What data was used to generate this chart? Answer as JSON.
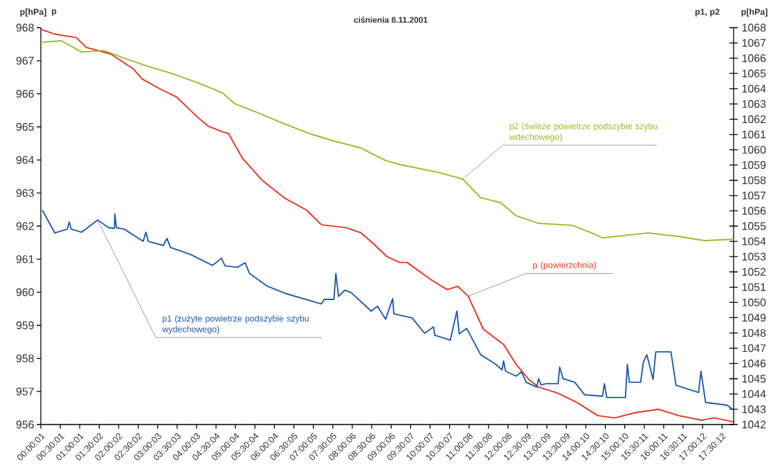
{
  "chart_data": {
    "type": "line",
    "title": "ciśnienia 8.11.2001",
    "ylabel": "p[hPa]",
    "y2label": "p[hPa]",
    "annotations": [
      "p",
      "p1, p2"
    ],
    "xlim": [
      0,
      17.8
    ],
    "xticks": [
      {
        "value": 0.0003,
        "label": "00:00:01"
      },
      {
        "value": 0.5003,
        "label": "00:30:01"
      },
      {
        "value": 1.0003,
        "label": "01:00:01"
      },
      {
        "value": 1.5006,
        "label": "01:30:02"
      },
      {
        "value": 2.0006,
        "label": "02:00:02"
      },
      {
        "value": 2.5006,
        "label": "02:30:02"
      },
      {
        "value": 3.0008,
        "label": "03:00:03"
      },
      {
        "value": 3.5008,
        "label": "03:30:03"
      },
      {
        "value": 4.0008,
        "label": "04:00:03"
      },
      {
        "value": 4.5011,
        "label": "04:30:04"
      },
      {
        "value": 5.0011,
        "label": "05:00:04"
      },
      {
        "value": 5.5011,
        "label": "05:30:04"
      },
      {
        "value": 6.0011,
        "label": "06:00:04"
      },
      {
        "value": 6.5014,
        "label": "06:30:05"
      },
      {
        "value": 7.0014,
        "label": "07:00:05"
      },
      {
        "value": 7.5014,
        "label": "07:30:05"
      },
      {
        "value": 8.0017,
        "label": "08:00:06"
      },
      {
        "value": 8.5017,
        "label": "08:30:06"
      },
      {
        "value": 9.0017,
        "label": "09:00:06"
      },
      {
        "value": 9.5019,
        "label": "09:30:07"
      },
      {
        "value": 10.0019,
        "label": "10:00:07"
      },
      {
        "value": 10.5019,
        "label": "10:30:07"
      },
      {
        "value": 11.0022,
        "label": "11:00:08"
      },
      {
        "value": 11.5022,
        "label": "11:30:08"
      },
      {
        "value": 12.0022,
        "label": "12:00:08"
      },
      {
        "value": 12.5025,
        "label": "12:30:09"
      },
      {
        "value": 13.0025,
        "label": "13:00:09"
      },
      {
        "value": 13.5025,
        "label": "13:30:09"
      },
      {
        "value": 14.0028,
        "label": "14:00:10"
      },
      {
        "value": 14.5028,
        "label": "14:30:10"
      },
      {
        "value": 15.0028,
        "label": "15:00:10"
      },
      {
        "value": 15.5031,
        "label": "15:30:11"
      },
      {
        "value": 16.0031,
        "label": "16:00:11"
      },
      {
        "value": 16.5031,
        "label": "16:30:11"
      },
      {
        "value": 17.0033,
        "label": "17:00:12"
      },
      {
        "value": 17.5033,
        "label": "17:30:12"
      }
    ],
    "ylim": [
      956,
      968
    ],
    "yticks": [
      956,
      957,
      958,
      959,
      960,
      961,
      962,
      963,
      964,
      965,
      966,
      967,
      968
    ],
    "y2lim": [
      1042,
      1068
    ],
    "y2ticks": [
      1042,
      1043,
      1044,
      1045,
      1046,
      1047,
      1048,
      1049,
      1050,
      1051,
      1052,
      1053,
      1054,
      1055,
      1056,
      1057,
      1058,
      1059,
      1060,
      1061,
      1062,
      1063,
      1064,
      1065,
      1066,
      1067,
      1068
    ],
    "series": [
      {
        "name": "p (powierzchnia)",
        "color": "#e8321e",
        "x": [
          0,
          0.37,
          0.91,
          1.17,
          1.8,
          2.38,
          2.6,
          3.04,
          3.49,
          4.02,
          4.29,
          4.64,
          4.82,
          5.18,
          5.69,
          6.26,
          6.83,
          7.21,
          7.85,
          8.22,
          8.56,
          8.9,
          9.22,
          9.41,
          10.05,
          10.44,
          10.71,
          10.98,
          11.37,
          11.89,
          12.21,
          12.54,
          12.79,
          13.26,
          13.77,
          14.31,
          14.75,
          15.28,
          15.87,
          16.39,
          16.98,
          17.3,
          17.8
        ],
        "values": [
          967.95,
          967.8,
          967.7,
          967.4,
          967.2,
          966.75,
          966.45,
          966.16,
          965.9,
          965.3,
          965.03,
          964.86,
          964.8,
          964.05,
          963.38,
          962.85,
          962.48,
          962.04,
          961.95,
          961.8,
          961.45,
          961.07,
          960.9,
          960.9,
          960.36,
          960.08,
          960.18,
          959.88,
          958.88,
          958.42,
          957.82,
          957.36,
          957.13,
          956.96,
          956.67,
          956.27,
          956.2,
          956.36,
          956.46,
          956.27,
          956.13,
          956.2,
          956.08
        ]
      },
      {
        "name": "p1 (zużyte powietrze podszybie szybu wydechowego)",
        "color": "#1f5aa8",
        "axis": "y2",
        "x": [
          0.04,
          0.36,
          0.68,
          0.73,
          0.78,
          1.05,
          1.46,
          1.74,
          1.89,
          1.9,
          1.94,
          2.14,
          2.63,
          2.7,
          2.76,
          3.15,
          3.24,
          3.33,
          3.84,
          4.41,
          4.64,
          4.73,
          5.05,
          5.25,
          5.36,
          5.82,
          6.32,
          7.21,
          7.28,
          7.53,
          7.58,
          7.65,
          7.81,
          7.97,
          8.49,
          8.65,
          8.86,
          9.04,
          9.07,
          9.54,
          9.86,
          10.09,
          10.12,
          10.52,
          10.69,
          10.75,
          10.94,
          11.3,
          11.69,
          11.85,
          11.89,
          11.94,
          12.21,
          12.35,
          12.47,
          12.74,
          12.79,
          12.85,
          12.99,
          13.29,
          13.33,
          13.42,
          13.72,
          13.97,
          14.43,
          14.48,
          14.54,
          15.02,
          15.07,
          15.12,
          15.41,
          15.48,
          15.57,
          15.73,
          15.8,
          16.19,
          16.32,
          16.9,
          16.96,
          17.08,
          17.63,
          17.8
        ],
        "values": [
          1056.04,
          1054.55,
          1054.8,
          1055.27,
          1054.8,
          1054.6,
          1055.4,
          1054.9,
          1054.85,
          1055.8,
          1054.9,
          1054.8,
          1054.0,
          1054.6,
          1054.0,
          1053.73,
          1054.2,
          1053.6,
          1053.15,
          1052.42,
          1052.9,
          1052.4,
          1052.3,
          1052.6,
          1051.9,
          1051.06,
          1050.56,
          1049.9,
          1050.2,
          1050.2,
          1051.9,
          1050.4,
          1050.8,
          1050.65,
          1049.43,
          1049.75,
          1048.9,
          1050.25,
          1049.25,
          1048.98,
          1047.98,
          1048.4,
          1047.85,
          1047.53,
          1049.43,
          1047.94,
          1048.3,
          1046.58,
          1045.94,
          1045.58,
          1046.17,
          1045.5,
          1045.17,
          1045.45,
          1044.77,
          1044.45,
          1045.0,
          1044.6,
          1044.68,
          1044.68,
          1045.76,
          1045.0,
          1044.77,
          1043.95,
          1043.86,
          1044.68,
          1043.77,
          1043.77,
          1045.94,
          1044.77,
          1044.77,
          1046.08,
          1046.58,
          1044.95,
          1046.76,
          1046.76,
          1044.58,
          1044.1,
          1045.49,
          1043.45,
          1043.27,
          1042.95
        ]
      },
      {
        "name": "p2 (świeże powietrze podszybie szybu wdechowego)",
        "color": "#99bb2a",
        "axis": "y2",
        "x": [
          0.04,
          0.53,
          1.05,
          1.62,
          2.14,
          2.76,
          3.4,
          4.04,
          4.66,
          4.98,
          5.62,
          6.26,
          6.89,
          7.53,
          8.22,
          8.56,
          8.86,
          9.22,
          10.2,
          10.84,
          11.3,
          11.81,
          12.21,
          12.79,
          13.65,
          14.11,
          14.43,
          15.6,
          16.39,
          17.05,
          17.8
        ],
        "values": [
          1067.05,
          1067.14,
          1066.4,
          1066.5,
          1066.0,
          1065.46,
          1064.97,
          1064.38,
          1063.74,
          1063.02,
          1062.38,
          1061.7,
          1061.07,
          1060.57,
          1060.12,
          1059.67,
          1059.3,
          1059.03,
          1058.53,
          1058.08,
          1056.86,
          1056.54,
          1055.68,
          1055.18,
          1055.05,
          1054.6,
          1054.23,
          1054.55,
          1054.32,
          1054.05,
          1054.14
        ]
      }
    ]
  }
}
